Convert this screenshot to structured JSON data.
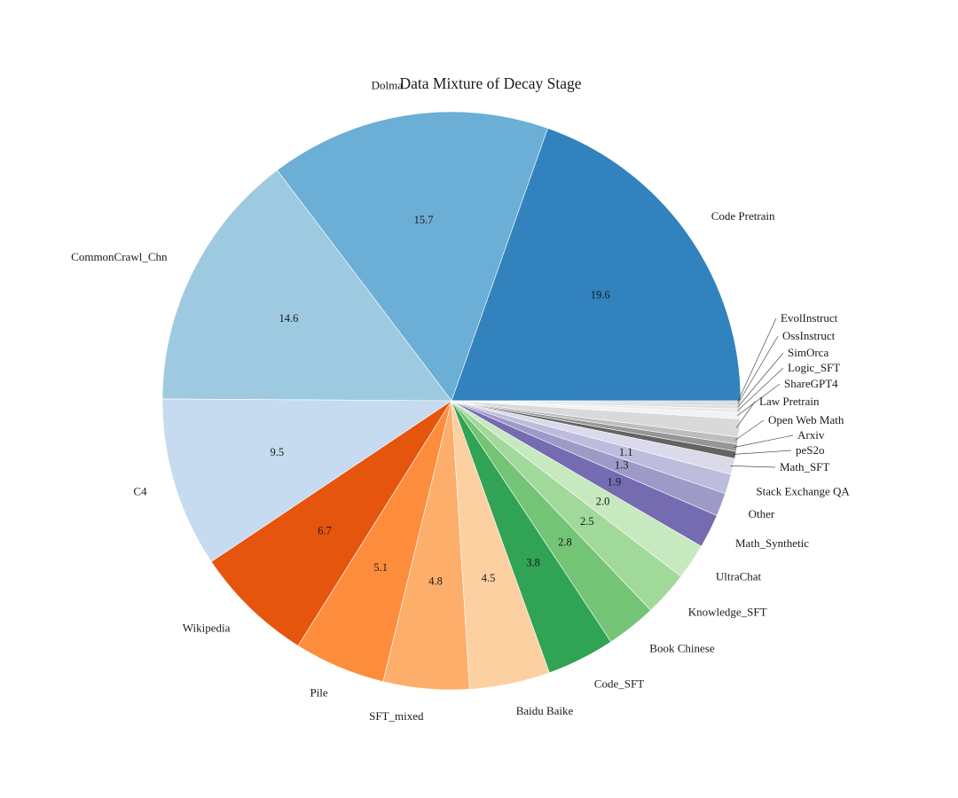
{
  "chart_data": {
    "type": "pie",
    "title": "Data Mixture of Decay Stage",
    "start_angle": 0,
    "direction": "counterclockwise",
    "value_unit": "percent",
    "legend_position": "none",
    "slices": [
      {
        "label": "Code Pretrain",
        "value": 19.6,
        "value_labeled": true,
        "color": "#3182bd"
      },
      {
        "label": "Dolma",
        "value": 15.7,
        "value_labeled": true,
        "color": "#6baed6"
      },
      {
        "label": "CommonCrawl_Chn",
        "value": 14.6,
        "value_labeled": true,
        "color": "#9ecae1"
      },
      {
        "label": "C4",
        "value": 9.5,
        "value_labeled": true,
        "color": "#c6dbef"
      },
      {
        "label": "Wikipedia",
        "value": 6.7,
        "value_labeled": true,
        "color": "#e6550d"
      },
      {
        "label": "Pile",
        "value": 5.1,
        "value_labeled": true,
        "color": "#fd8d3c"
      },
      {
        "label": "SFT_mixed",
        "value": 4.8,
        "value_labeled": true,
        "color": "#fdae6b"
      },
      {
        "label": "Baidu Baike",
        "value": 4.5,
        "value_labeled": true,
        "color": "#fdd0a2"
      },
      {
        "label": "Code_SFT",
        "value": 3.8,
        "value_labeled": true,
        "color": "#31a354"
      },
      {
        "label": "Book Chinese",
        "value": 2.8,
        "value_labeled": true,
        "color": "#74c476"
      },
      {
        "label": "Knowledge_SFT",
        "value": 2.5,
        "value_labeled": true,
        "color": "#a1d99b"
      },
      {
        "label": "UltraChat",
        "value": 2.0,
        "value_labeled": true,
        "color": "#c7e9c0"
      },
      {
        "label": "Math_Synthetic",
        "value": 1.9,
        "value_labeled": true,
        "color": "#756bb1"
      },
      {
        "label": "Other",
        "value": 1.3,
        "value_labeled": true,
        "color": "#9e9ac8"
      },
      {
        "label": "Stack Exchange QA",
        "value": 1.1,
        "value_labeled": true,
        "color": "#bcbddc"
      },
      {
        "label": "Math_SFT",
        "value": 0.9,
        "value_labeled": false,
        "color": "#dadaeb"
      },
      {
        "label": "peS2o",
        "value": 0.4,
        "value_labeled": false,
        "color": "#636363"
      },
      {
        "label": "Arxiv",
        "value": 0.4,
        "value_labeled": false,
        "color": "#969696"
      },
      {
        "label": "Open Web Math",
        "value": 0.4,
        "value_labeled": false,
        "color": "#bdbdbd"
      },
      {
        "label": "Law Pretrain",
        "value": 1.0,
        "value_labeled": false,
        "color": "#d9d9d9"
      },
      {
        "label": "ShareGPT4",
        "value": 0.35,
        "value_labeled": false,
        "color": "#f2f2f2"
      },
      {
        "label": "Logic_SFT",
        "value": 0.2,
        "value_labeled": false,
        "color": "#e9e9e9"
      },
      {
        "label": "SimOrca",
        "value": 0.2,
        "value_labeled": false,
        "color": "#dfdfdf"
      },
      {
        "label": "OssInstruct",
        "value": 0.15,
        "value_labeled": false,
        "color": "#d4d4d4"
      },
      {
        "label": "EvolInstruct",
        "value": 0.1,
        "value_labeled": false,
        "color": "#cccccc"
      }
    ]
  }
}
